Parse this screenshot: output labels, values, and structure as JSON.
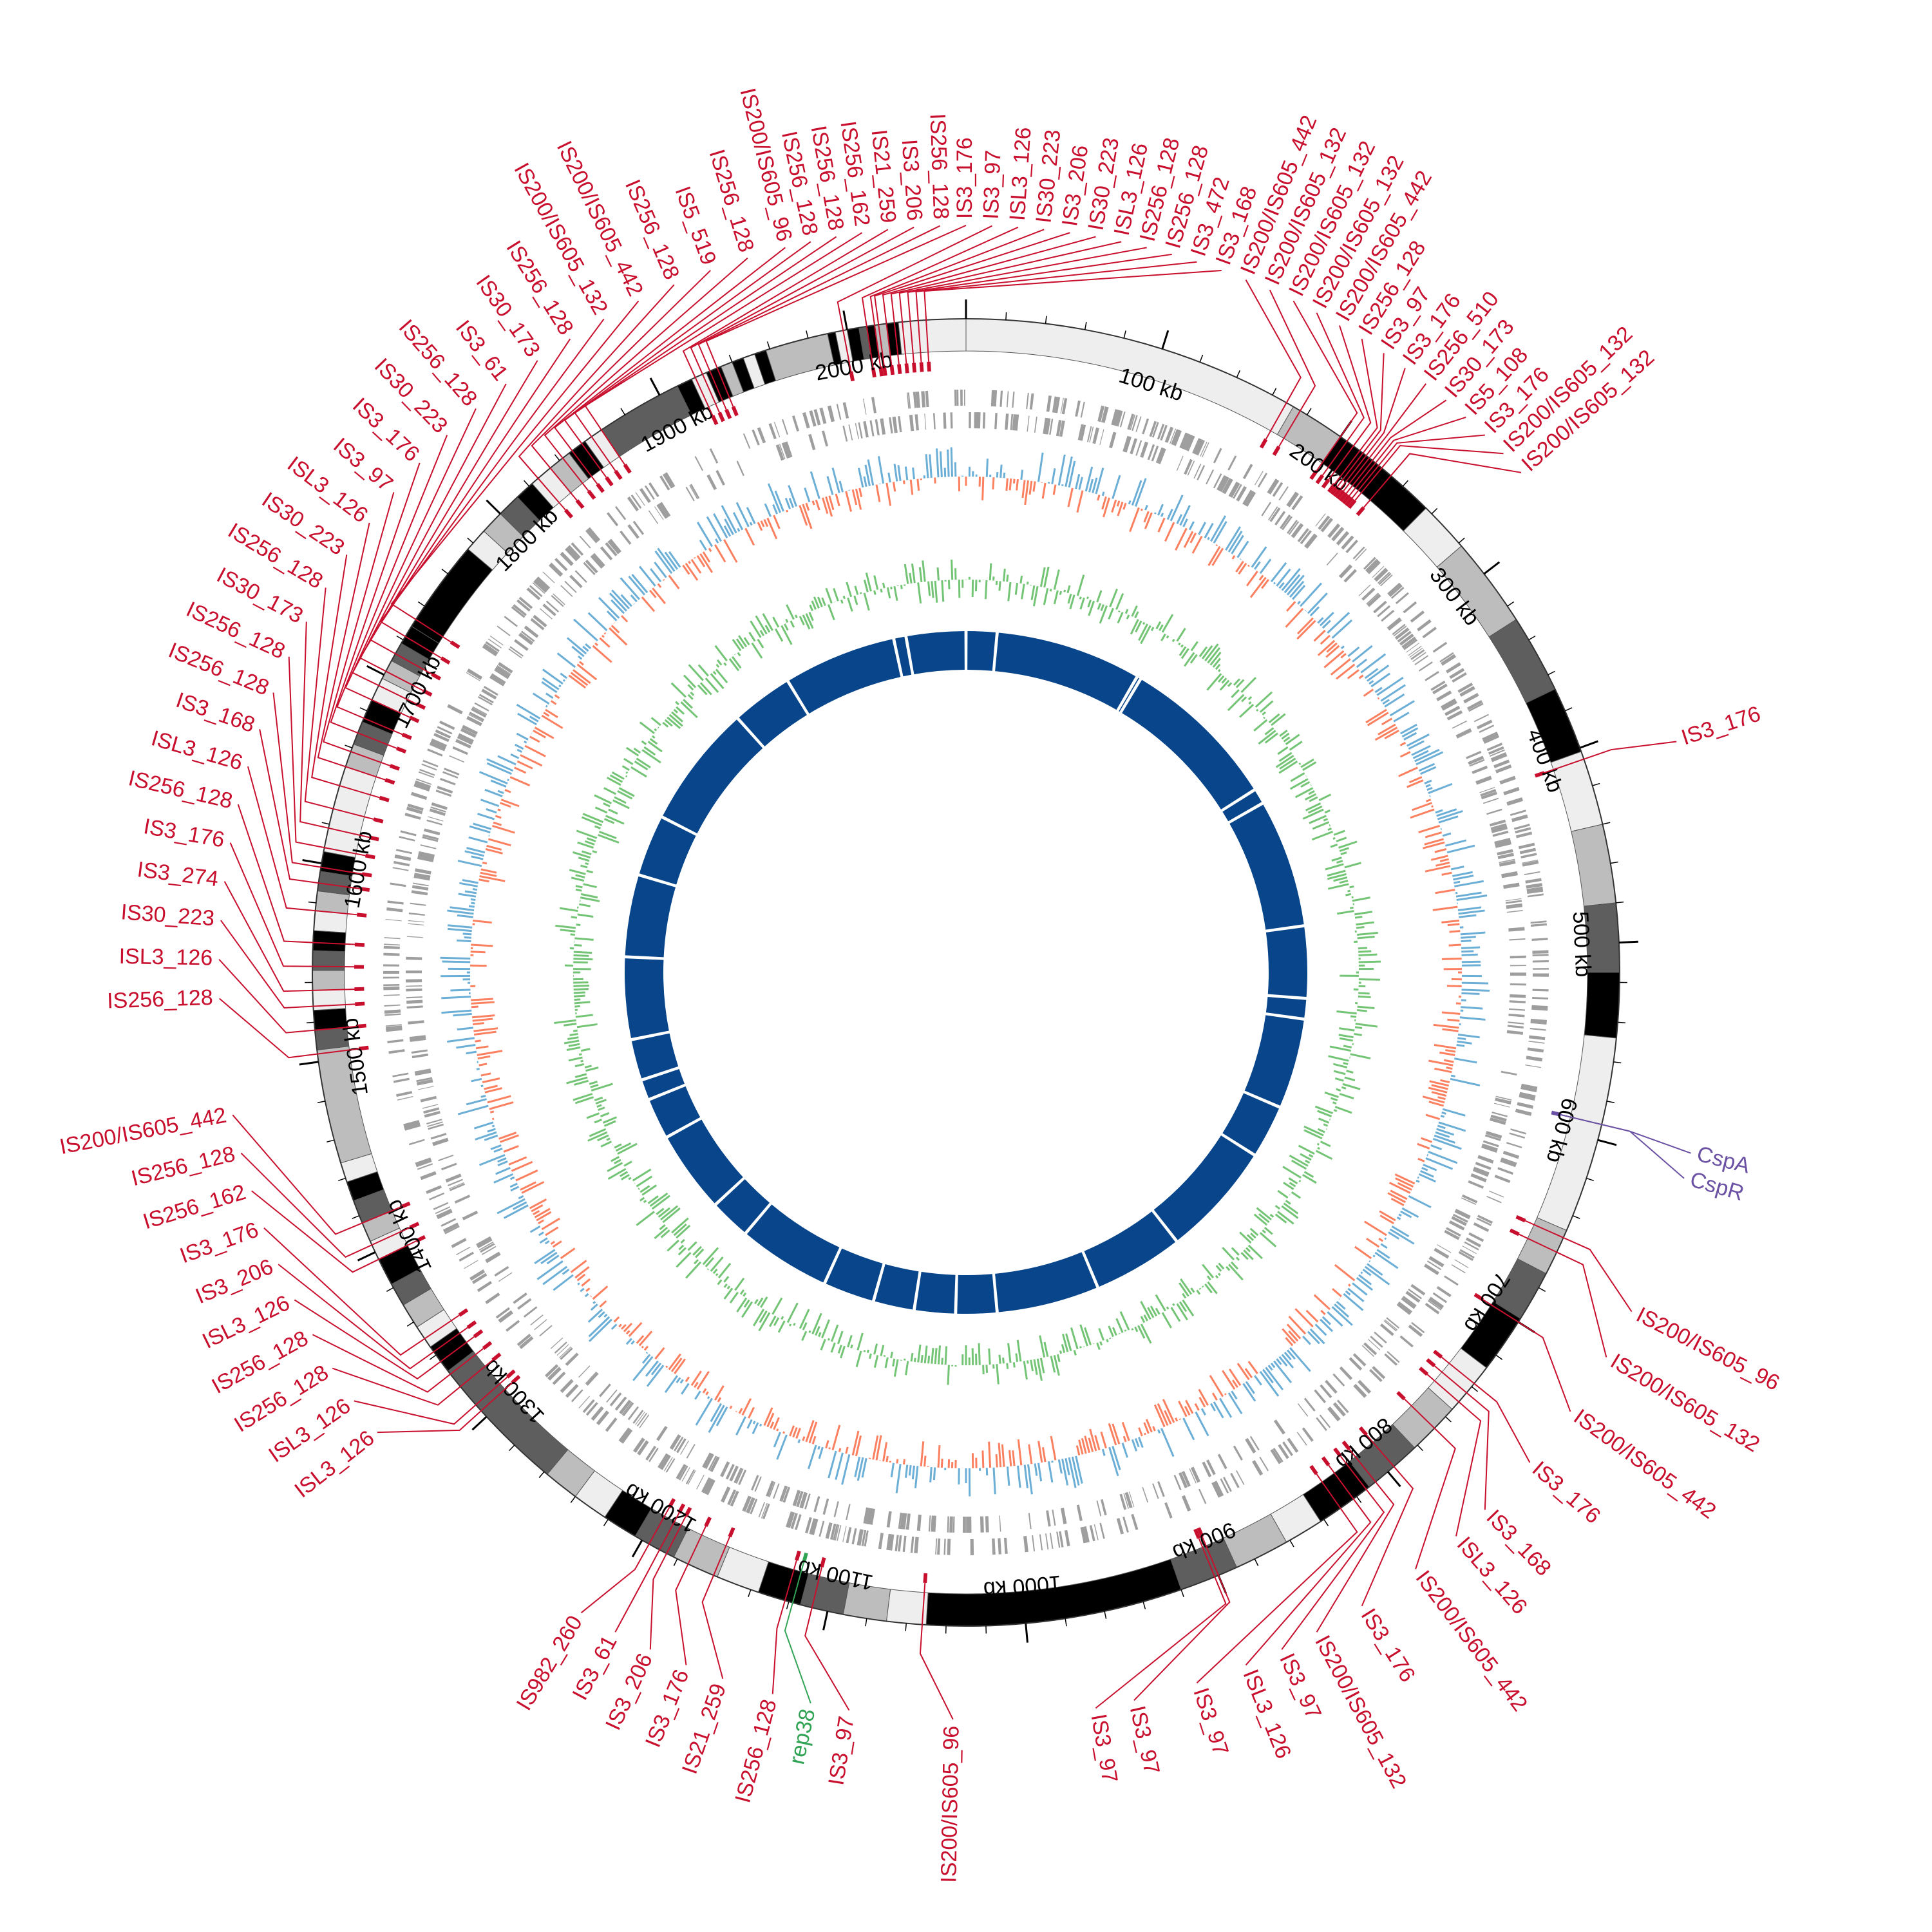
{
  "figure": {
    "type": "circular-genome-map",
    "genome_length_kb": 2060,
    "orientation": "clockwise from top"
  },
  "colors": {
    "is_element": "#c8102e",
    "cold_shock": "#6a51a3",
    "rep": "#31a354",
    "cds": "#9e9e9e",
    "gc_plus": "#6baed6",
    "gc_minus": "#fb8060",
    "gc_skew": "#74c476",
    "inner_ring": "#08458a"
  },
  "scale": {
    "ticks": [
      {
        "label": "100 kb",
        "kb": 100
      },
      {
        "label": "200 kb",
        "kb": 200
      },
      {
        "label": "300 kb",
        "kb": 300
      },
      {
        "label": "400 kb",
        "kb": 400
      },
      {
        "label": "500 kb",
        "kb": 500
      },
      {
        "label": "600 kb",
        "kb": 600
      },
      {
        "label": "700 kb",
        "kb": 700
      },
      {
        "label": "800 kb",
        "kb": 800
      },
      {
        "label": "900 kb",
        "kb": 900
      },
      {
        "label": "1000 kb",
        "kb": 1000
      },
      {
        "label": "1100 kb",
        "kb": 1100
      },
      {
        "label": "1200 kb",
        "kb": 1200
      },
      {
        "label": "1300 kb",
        "kb": 1300
      },
      {
        "label": "1400 kb",
        "kb": 1400
      },
      {
        "label": "1500 kb",
        "kb": 1500
      },
      {
        "label": "1600 kb",
        "kb": 1600
      },
      {
        "label": "1700 kb",
        "kb": 1700
      },
      {
        "label": "1800 kb",
        "kb": 1800
      },
      {
        "label": "1900 kb",
        "kb": 1900
      },
      {
        "label": "2000 kb",
        "kb": 2000
      }
    ]
  },
  "ideogram_bands": [
    {
      "start": 0,
      "end": 172,
      "shade": "#eeeeee"
    },
    {
      "start": 172,
      "end": 200,
      "shade": "#bdbdbd"
    },
    {
      "start": 200,
      "end": 214,
      "shade": "#000000"
    },
    {
      "start": 214,
      "end": 232,
      "shade": "#000000"
    },
    {
      "start": 232,
      "end": 256,
      "shade": "#000000"
    },
    {
      "start": 256,
      "end": 282,
      "shade": "#eeeeee"
    },
    {
      "start": 282,
      "end": 328,
      "shade": "#bdbdbd"
    },
    {
      "start": 328,
      "end": 368,
      "shade": "#5e5e5e"
    },
    {
      "start": 368,
      "end": 402,
      "shade": "#000000"
    },
    {
      "start": 402,
      "end": 440,
      "shade": "#eeeeee"
    },
    {
      "start": 440,
      "end": 480,
      "shade": "#bdbdbd"
    },
    {
      "start": 480,
      "end": 515,
      "shade": "#5e5e5e"
    },
    {
      "start": 515,
      "end": 548,
      "shade": "#000000"
    },
    {
      "start": 548,
      "end": 648,
      "shade": "#eeeeee"
    },
    {
      "start": 648,
      "end": 672,
      "shade": "#bdbdbd"
    },
    {
      "start": 672,
      "end": 698,
      "shade": "#5e5e5e"
    },
    {
      "start": 698,
      "end": 728,
      "shade": "#000000"
    },
    {
      "start": 728,
      "end": 755,
      "shade": "#eeeeee"
    },
    {
      "start": 755,
      "end": 782,
      "shade": "#bdbdbd"
    },
    {
      "start": 782,
      "end": 812,
      "shade": "#5e5e5e"
    },
    {
      "start": 812,
      "end": 842,
      "shade": "#000000"
    },
    {
      "start": 842,
      "end": 862,
      "shade": "#eeeeee"
    },
    {
      "start": 862,
      "end": 890,
      "shade": "#bdbdbd"
    },
    {
      "start": 890,
      "end": 920,
      "shade": "#5e5e5e"
    },
    {
      "start": 920,
      "end": 1050,
      "shade": "#000000"
    },
    {
      "start": 1050,
      "end": 1070,
      "shade": "#eeeeee"
    },
    {
      "start": 1070,
      "end": 1092,
      "shade": "#bdbdbd"
    },
    {
      "start": 1092,
      "end": 1114,
      "shade": "#5e5e5e"
    },
    {
      "start": 1114,
      "end": 1136,
      "shade": "#000000"
    },
    {
      "start": 1136,
      "end": 1158,
      "shade": "#eeeeee"
    },
    {
      "start": 1158,
      "end": 1182,
      "shade": "#bdbdbd"
    },
    {
      "start": 1182,
      "end": 1204,
      "shade": "#5e5e5e"
    },
    {
      "start": 1204,
      "end": 1222,
      "shade": "#000000"
    },
    {
      "start": 1222,
      "end": 1240,
      "shade": "#eeeeee"
    },
    {
      "start": 1240,
      "end": 1258,
      "shade": "#bdbdbd"
    },
    {
      "start": 1258,
      "end": 1330,
      "shade": "#5e5e5e"
    },
    {
      "start": 1330,
      "end": 1345,
      "shade": "#000000"
    },
    {
      "start": 1345,
      "end": 1357,
      "shade": "#eeeeee"
    },
    {
      "start": 1357,
      "end": 1370,
      "shade": "#bdbdbd"
    },
    {
      "start": 1370,
      "end": 1382,
      "shade": "#5e5e5e"
    },
    {
      "start": 1382,
      "end": 1396,
      "shade": "#000000"
    },
    {
      "start": 1396,
      "end": 1406,
      "shade": "#eeeeee"
    },
    {
      "start": 1406,
      "end": 1416,
      "shade": "#bdbdbd"
    },
    {
      "start": 1416,
      "end": 1428,
      "shade": "#5e5e5e"
    },
    {
      "start": 1428,
      "end": 1438,
      "shade": "#000000"
    },
    {
      "start": 1438,
      "end": 1448,
      "shade": "#eeeeee"
    },
    {
      "start": 1448,
      "end": 1506,
      "shade": "#bdbdbd"
    },
    {
      "start": 1506,
      "end": 1516,
      "shade": "#5e5e5e"
    },
    {
      "start": 1516,
      "end": 1526,
      "shade": "#000000"
    },
    {
      "start": 1526,
      "end": 1536,
      "shade": "#eeeeee"
    },
    {
      "start": 1536,
      "end": 1546,
      "shade": "#bdbdbd"
    },
    {
      "start": 1546,
      "end": 1556,
      "shade": "#5e5e5e"
    },
    {
      "start": 1556,
      "end": 1566,
      "shade": "#000000"
    },
    {
      "start": 1566,
      "end": 1576,
      "shade": "#eeeeee"
    },
    {
      "start": 1576,
      "end": 1586,
      "shade": "#bdbdbd"
    },
    {
      "start": 1586,
      "end": 1596,
      "shade": "#5e5e5e"
    },
    {
      "start": 1596,
      "end": 1606,
      "shade": "#000000"
    },
    {
      "start": 1606,
      "end": 1650,
      "shade": "#eeeeee"
    },
    {
      "start": 1650,
      "end": 1662,
      "shade": "#bdbdbd"
    },
    {
      "start": 1662,
      "end": 1674,
      "shade": "#5e5e5e"
    },
    {
      "start": 1674,
      "end": 1686,
      "shade": "#000000"
    },
    {
      "start": 1686,
      "end": 1698,
      "shade": "#eeeeee"
    },
    {
      "start": 1698,
      "end": 1708,
      "shade": "#bdbdbd"
    },
    {
      "start": 1708,
      "end": 1718,
      "shade": "#5e5e5e"
    },
    {
      "start": 1718,
      "end": 1728,
      "shade": "#000000"
    },
    {
      "start": 1728,
      "end": 1776,
      "shade": "#000000"
    },
    {
      "start": 1776,
      "end": 1788,
      "shade": "#eeeeee"
    },
    {
      "start": 1788,
      "end": 1800,
      "shade": "#bdbdbd"
    },
    {
      "start": 1800,
      "end": 1812,
      "shade": "#5e5e5e"
    },
    {
      "start": 1812,
      "end": 1822,
      "shade": "#000000"
    },
    {
      "start": 1822,
      "end": 1834,
      "shade": "#eeeeee"
    },
    {
      "start": 1834,
      "end": 1846,
      "shade": "#bdbdbd"
    },
    {
      "start": 1846,
      "end": 1856,
      "shade": "#000000"
    },
    {
      "start": 1856,
      "end": 1866,
      "shade": "#eeeeee"
    },
    {
      "start": 1866,
      "end": 1910,
      "shade": "#5e5e5e"
    },
    {
      "start": 1910,
      "end": 1918,
      "shade": "#000000"
    },
    {
      "start": 1918,
      "end": 1926,
      "shade": "#eeeeee"
    },
    {
      "start": 1926,
      "end": 1934,
      "shade": "#000000"
    },
    {
      "start": 1934,
      "end": 1940,
      "shade": "#bdbdbd"
    },
    {
      "start": 1940,
      "end": 1946,
      "shade": "#000000"
    },
    {
      "start": 1946,
      "end": 1952,
      "shade": "#eeeeee"
    },
    {
      "start": 1952,
      "end": 1958,
      "shade": "#000000"
    },
    {
      "start": 1958,
      "end": 1990,
      "shade": "#bdbdbd"
    },
    {
      "start": 1990,
      "end": 1994,
      "shade": "#000000"
    },
    {
      "start": 1994,
      "end": 2000,
      "shade": "#eeeeee"
    },
    {
      "start": 2000,
      "end": 2006,
      "shade": "#000000"
    },
    {
      "start": 2006,
      "end": 2010,
      "shade": "#5e5e5e"
    },
    {
      "start": 2010,
      "end": 2014,
      "shade": "#000000"
    },
    {
      "start": 2014,
      "end": 2020,
      "shade": "#bdbdbd"
    },
    {
      "start": 2020,
      "end": 2026,
      "shade": "#000000"
    },
    {
      "start": 2026,
      "end": 2060,
      "shade": "#eeeeee"
    }
  ],
  "is_labels": [
    {
      "label": "IS3_176",
      "kb": 406,
      "angle": 72
    },
    {
      "label": "CspA",
      "kb": 592,
      "angle": 104
    },
    {
      "label": "CspR",
      "kb": 592,
      "angle": 106
    },
    {
      "label": "IS200/IS605_96",
      "kb": 652,
      "angle": 117
    },
    {
      "label": "IS200/IS605_132",
      "kb": 660,
      "angle": 121
    },
    {
      "label": "IS200/IS605_442",
      "kb": 700,
      "angle": 126
    },
    {
      "label": "IS3_176",
      "kb": 738,
      "angle": 131
    },
    {
      "label": "IS3_168",
      "kb": 744,
      "angle": 136
    },
    {
      "label": "ISL3_126",
      "kb": 750,
      "angle": 139
    },
    {
      "label": "IS200/IS605_442",
      "kb": 768,
      "angle": 143
    },
    {
      "label": "IS3_176",
      "kb": 796,
      "angle": 148
    },
    {
      "label": "IS200/IS605_132",
      "kb": 808,
      "angle": 152
    },
    {
      "label": "IS3_97",
      "kb": 814,
      "angle": 155
    },
    {
      "label": "ISL3_126",
      "kb": 822,
      "angle": 158
    },
    {
      "label": "IS3_97",
      "kb": 830,
      "angle": 162
    },
    {
      "label": "IS3_97",
      "kb": 900,
      "angle": 167
    },
    {
      "label": "IS3_97",
      "kb": 902,
      "angle": 170
    },
    {
      "label": "IS200/IS605_96",
      "kb": 1052,
      "angle": 181
    },
    {
      "label": "IS3_97",
      "kb": 1108,
      "angle": 189
    },
    {
      "label": "rep38",
      "kb": 1118,
      "angle": 192
    },
    {
      "label": "IS256_128",
      "kb": 1122,
      "angle": 195
    },
    {
      "label": "IS21_259",
      "kb": 1160,
      "angle": 199
    },
    {
      "label": "IS3_176",
      "kb": 1174,
      "angle": 202
    },
    {
      "label": "IS3_206",
      "kb": 1186,
      "angle": 205
    },
    {
      "label": "IS3_61",
      "kb": 1190,
      "angle": 208
    },
    {
      "label": "IS982_260",
      "kb": 1196,
      "angle": 211
    },
    {
      "label": "ISL3_126",
      "kb": 1304,
      "angle": 232
    },
    {
      "label": "ISL3_126",
      "kb": 1308,
      "angle": 235
    },
    {
      "label": "IS256_128",
      "kb": 1320,
      "angle": 238
    },
    {
      "label": "IS256_128",
      "kb": 1328,
      "angle": 241
    },
    {
      "label": "ISL3_126",
      "kb": 1336,
      "angle": 244
    },
    {
      "label": "IS3_206",
      "kb": 1342,
      "angle": 247
    },
    {
      "label": "IS3_176",
      "kb": 1350,
      "angle": 250
    },
    {
      "label": "IS256_162",
      "kb": 1396,
      "angle": 253
    },
    {
      "label": "IS256_128",
      "kb": 1404,
      "angle": 256
    },
    {
      "label": "IS200/IS605_442",
      "kb": 1416,
      "angle": 259
    },
    {
      "label": "IS256_128",
      "kb": 1504,
      "angle": 268
    },
    {
      "label": "ISL3_126",
      "kb": 1516,
      "angle": 271
    },
    {
      "label": "IS30_223",
      "kb": 1528,
      "angle": 274
    },
    {
      "label": "IS3_274",
      "kb": 1536,
      "angle": 277
    },
    {
      "label": "IS3_176",
      "kb": 1548,
      "angle": 280
    },
    {
      "label": "IS256_128",
      "kb": 1560,
      "angle": 283
    },
    {
      "label": "ISL3_126",
      "kb": 1576,
      "angle": 286
    },
    {
      "label": "IS3_168",
      "kb": 1590,
      "angle": 289
    },
    {
      "label": "IS256_128",
      "kb": 1598,
      "angle": 292
    },
    {
      "label": "IS256_128",
      "kb": 1608,
      "angle": 295
    },
    {
      "label": "IS30_173",
      "kb": 1618,
      "angle": 298
    },
    {
      "label": "IS256_128",
      "kb": 1628,
      "angle": 301
    },
    {
      "label": "IS30_223",
      "kb": 1640,
      "angle": 304
    },
    {
      "label": "ISL3_126",
      "kb": 1650,
      "angle": 307
    },
    {
      "label": "IS3_97",
      "kb": 1658,
      "angle": 310
    },
    {
      "label": "IS3_176",
      "kb": 1668,
      "angle": 313
    },
    {
      "label": "IS30_223",
      "kb": 1676,
      "angle": 316
    },
    {
      "label": "IS256_128",
      "kb": 1686,
      "angle": 319
    },
    {
      "label": "IS3_61",
      "kb": 1694,
      "angle": 322
    },
    {
      "label": "IS30_173",
      "kb": 1702,
      "angle": 325
    },
    {
      "label": "IS256_128",
      "kb": 1712,
      "angle": 328
    },
    {
      "label": "IS200/IS605_132",
      "kb": 1722,
      "angle": 331
    },
    {
      "label": "IS200/IS605_442",
      "kb": 1732,
      "angle": 334
    },
    {
      "label": "IS256_128",
      "kb": 1826,
      "angle": 337
    },
    {
      "label": "IS5_519",
      "kb": 1834,
      "angle": 340
    },
    {
      "label": "IS256_128",
      "kb": 1842,
      "angle": 343
    },
    {
      "label": "IS200/IS605_96",
      "kb": 1848,
      "angle": 346
    },
    {
      "label": "IS256_128",
      "kb": 1854,
      "angle": 348
    },
    {
      "label": "IS256_128",
      "kb": 1860,
      "angle": 350
    },
    {
      "label": "IS256_162",
      "kb": 1866,
      "angle": 352
    },
    {
      "label": "IS21_259",
      "kb": 1920,
      "angle": 354
    },
    {
      "label": "IS3_206",
      "kb": 1924,
      "angle": 356
    },
    {
      "label": "IS256_128",
      "kb": 1928,
      "angle": 358
    },
    {
      "label": "IS3_176",
      "kb": 1932,
      "angle": 360
    },
    {
      "label": "IS3_97",
      "kb": 1998,
      "angle": 362
    },
    {
      "label": "ISL3_126",
      "kb": 2010,
      "angle": 364
    },
    {
      "label": "IS30_223",
      "kb": 2014,
      "angle": 366
    },
    {
      "label": "IS3_206",
      "kb": 2016,
      "angle": 368
    },
    {
      "label": "IS30_223",
      "kb": 2020,
      "angle": 370
    },
    {
      "label": "ISL3_126",
      "kb": 2024,
      "angle": 372
    },
    {
      "label": "IS256_128",
      "kb": 2028,
      "angle": 374
    },
    {
      "label": "IS256_128",
      "kb": 2032,
      "angle": 376
    },
    {
      "label": "IS3_472",
      "kb": 2036,
      "angle": 378
    },
    {
      "label": "IS3_168",
      "kb": 2040,
      "angle": 380
    },
    {
      "label": "IS200/IS605_442",
      "kb": 168,
      "angle": 382
    },
    {
      "label": "IS200/IS605_132",
      "kb": 176,
      "angle": 384
    },
    {
      "label": "IS200/IS605_132",
      "kb": 200,
      "angle": 386
    },
    {
      "label": "IS200/IS605_132",
      "kb": 204,
      "angle": 388
    },
    {
      "label": "IS200/IS605_442",
      "kb": 208,
      "angle": 390
    },
    {
      "label": "IS256_128",
      "kb": 212,
      "angle": 392
    },
    {
      "label": "IS3_97",
      "kb": 214,
      "angle": 394
    },
    {
      "label": "IS3_176",
      "kb": 216,
      "angle": 396
    },
    {
      "label": "IS256_510",
      "kb": 218,
      "angle": 398
    },
    {
      "label": "IS30_173",
      "kb": 220,
      "angle": 400
    },
    {
      "label": "IS5_108",
      "kb": 222,
      "angle": 402
    },
    {
      "label": "IS3_176",
      "kb": 224,
      "angle": 404
    },
    {
      "label": "IS200/IS605_132",
      "kb": 226,
      "angle": 406
    },
    {
      "label": "IS200/IS605_132",
      "kb": 232,
      "angle": 408
    }
  ]
}
